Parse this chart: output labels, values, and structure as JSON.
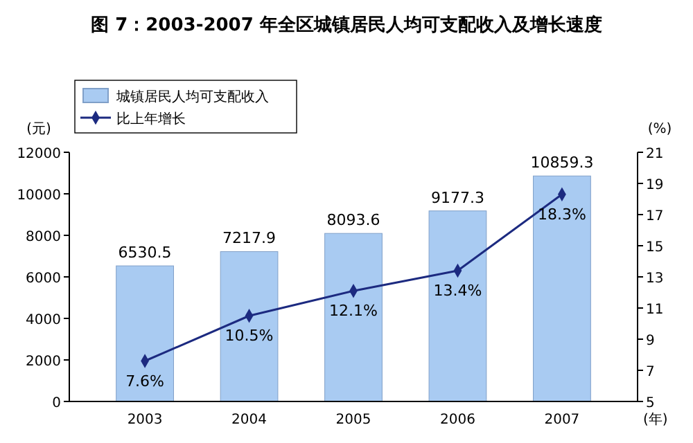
{
  "chart_data": {
    "type": "bar",
    "title": "图 7：2003-2007 年全区城镇居民人均可支配收入及增长速度",
    "categories": [
      "2003",
      "2004",
      "2005",
      "2006",
      "2007"
    ],
    "xlabel": "(年)",
    "ylabel": "(元)",
    "y2label": "(%)",
    "series": [
      {
        "name": "城镇居民人均可支配收入",
        "color": "#a9cbf2",
        "values": [
          6530.5,
          7217.9,
          8093.6,
          9177.3,
          10859.3
        ],
        "value_labels": [
          "6530.5",
          "7217.9",
          "8093.6",
          "9177.3",
          "10859.3"
        ]
      },
      {
        "name": "比上年增长",
        "type": "line",
        "axis": "y2",
        "color": "#1c2a80",
        "marker": "diamond",
        "values": [
          7.6,
          10.5,
          12.1,
          13.4,
          18.3
        ],
        "value_labels": [
          "7.6%",
          "10.5%",
          "12.1%",
          "13.4%",
          "18.3%"
        ]
      }
    ],
    "ylim": [
      0,
      12000
    ],
    "yticks": [
      0,
      2000,
      4000,
      6000,
      8000,
      10000,
      12000
    ],
    "y2lim": [
      5,
      21
    ],
    "y2ticks": [
      5,
      7,
      9,
      11,
      13,
      15,
      17,
      19,
      21
    ],
    "legend": "top left",
    "grid": false
  }
}
